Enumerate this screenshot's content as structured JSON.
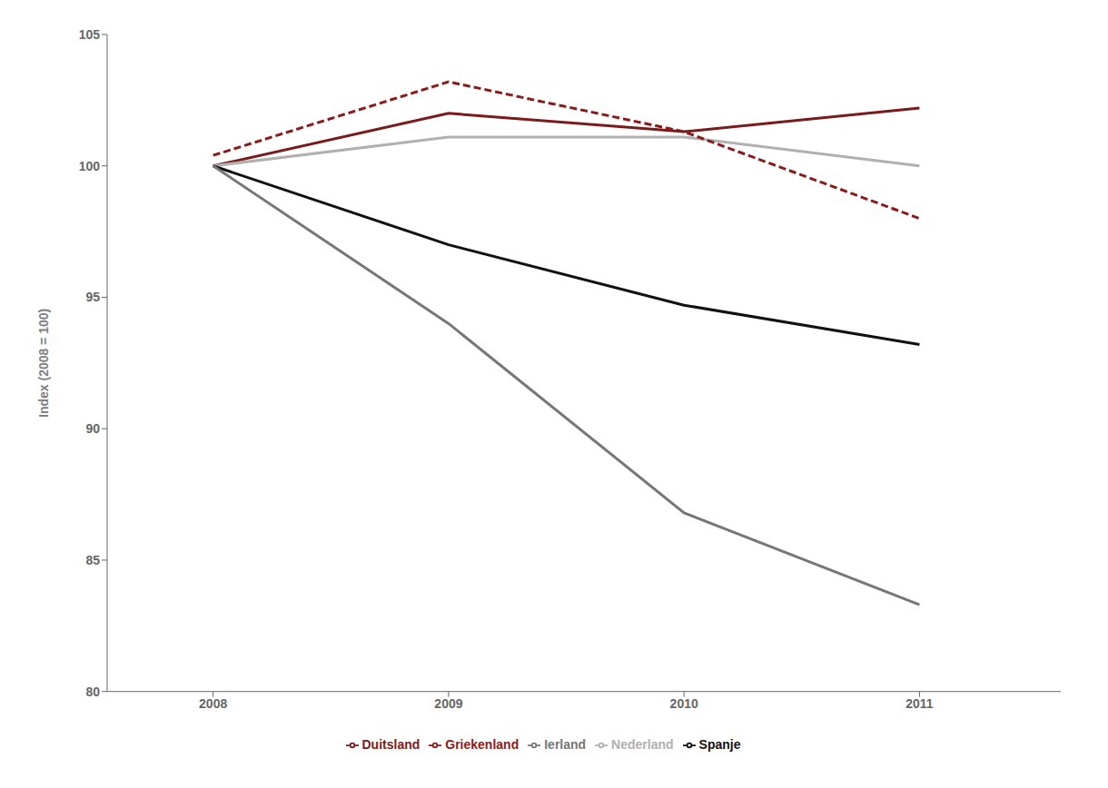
{
  "chart_data": {
    "type": "line",
    "ylabel": "Index (2008 = 100)",
    "x": [
      2008,
      2009,
      2010,
      2011
    ],
    "xlim": [
      2007.55,
      2011.6
    ],
    "xticks": [
      2008,
      2009,
      2010,
      2011
    ],
    "ylim": [
      80,
      105
    ],
    "yticks": [
      80,
      85,
      90,
      95,
      100,
      105
    ],
    "grid": false,
    "legend": "bottom",
    "series": [
      {
        "name": "Duitsland",
        "color": "#7b1a1a",
        "values": [
          100.0,
          102.0,
          101.3,
          102.2
        ],
        "line_style": "solid"
      },
      {
        "name": "Nederland",
        "color": "#b0b0b0",
        "values": [
          100.0,
          101.1,
          101.1,
          100.0
        ],
        "line_style": "solid"
      },
      {
        "name": "Griekenland",
        "color": "#8b1a1a",
        "values": [
          100.4,
          103.2,
          101.3,
          98.0
        ],
        "line_style": "dashed"
      },
      {
        "name": "Spanje",
        "color": "#111111",
        "values": [
          100.0,
          97.0,
          94.7,
          93.2
        ],
        "line_style": "solid"
      },
      {
        "name": "Ierland",
        "color": "#777777",
        "values": [
          100.0,
          94.0,
          86.8,
          83.3
        ],
        "line_style": "solid"
      }
    ]
  }
}
